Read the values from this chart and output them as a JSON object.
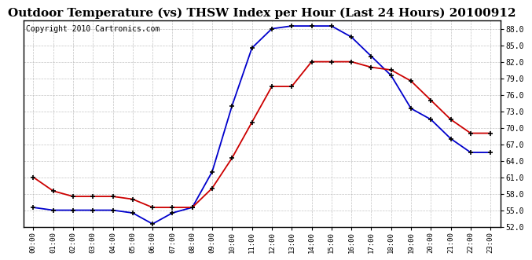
{
  "title": "Outdoor Temperature (vs) THSW Index per Hour (Last 24 Hours) 20100912",
  "copyright": "Copyright 2010 Cartronics.com",
  "hours": [
    "00:00",
    "01:00",
    "02:00",
    "03:00",
    "04:00",
    "05:00",
    "06:00",
    "07:00",
    "08:00",
    "09:00",
    "10:00",
    "11:00",
    "12:00",
    "13:00",
    "14:00",
    "15:00",
    "16:00",
    "17:00",
    "18:00",
    "19:00",
    "20:00",
    "21:00",
    "22:00",
    "23:00"
  ],
  "temp_outdoor": [
    61.0,
    58.5,
    57.5,
    57.5,
    57.5,
    57.0,
    55.5,
    55.5,
    55.5,
    59.0,
    64.5,
    71.0,
    77.5,
    77.5,
    82.0,
    82.0,
    82.0,
    81.0,
    80.5,
    78.5,
    75.0,
    71.5,
    69.0,
    69.0
  ],
  "thsw_index": [
    55.5,
    55.0,
    55.0,
    55.0,
    55.0,
    54.5,
    52.5,
    54.5,
    55.5,
    62.0,
    74.0,
    84.5,
    88.0,
    88.5,
    88.5,
    88.5,
    86.5,
    83.0,
    79.5,
    73.5,
    71.5,
    68.0,
    65.5,
    65.5
  ],
  "ylim": [
    52.0,
    89.5
  ],
  "yticks": [
    52.0,
    55.0,
    58.0,
    61.0,
    64.0,
    67.0,
    70.0,
    73.0,
    76.0,
    79.0,
    82.0,
    85.0,
    88.0
  ],
  "temp_color": "#cc0000",
  "thsw_color": "#0000cc",
  "bg_color": "#ffffff",
  "grid_color": "#aaaaaa",
  "title_fontsize": 11,
  "copyright_fontsize": 7
}
